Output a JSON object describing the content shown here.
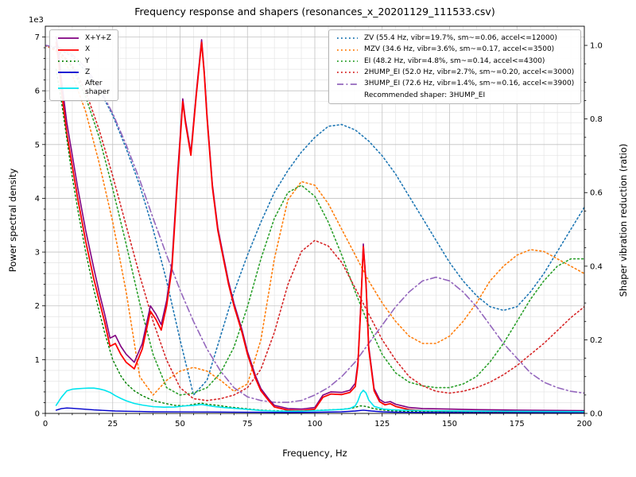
{
  "title": "Frequency response and shapers (resonances_x_20201129_111533.csv)",
  "axes": {
    "x": {
      "label": "Frequency, Hz"
    },
    "y_left": {
      "label": "Power spectral density",
      "multiplier": "1e3"
    },
    "y_right": {
      "label": "Shaper vibration reduction (ratio)"
    }
  },
  "legend_psd": {
    "items": [
      {
        "label": "X+Y+Z",
        "color": "#800080",
        "style": "solid"
      },
      {
        "label": "X",
        "color": "#ff0000",
        "style": "solid"
      },
      {
        "label": "Y",
        "color": "#008000",
        "style": "dotted"
      },
      {
        "label": "Z",
        "color": "#0000cd",
        "style": "solid"
      },
      {
        "label": "After\nshaper",
        "color": "#00e5ee",
        "style": "solid"
      }
    ]
  },
  "legend_shapers": {
    "items": [
      {
        "label": "ZV (55.4 Hz, vibr=19.7%, sm~=0.06, accel<=12000)",
        "color": "#1f77b4",
        "style": "dotted"
      },
      {
        "label": "MZV (34.6 Hz, vibr=3.6%, sm~=0.17, accel<=3500)",
        "color": "#ff7f0e",
        "style": "dotted"
      },
      {
        "label": "EI (48.2 Hz, vibr=4.8%, sm~=0.14, accel<=4300)",
        "color": "#2ca02c",
        "style": "dotted"
      },
      {
        "label": "2HUMP_EI (52.0 Hz, vibr=2.7%, sm~=0.20, accel<=3000)",
        "color": "#d62728",
        "style": "dotted"
      },
      {
        "label": "3HUMP_EI (72.6 Hz, vibr=1.4%, sm~=0.16, accel<=3900)",
        "color": "#9467bd",
        "style": "dashdot"
      }
    ],
    "note": "Recommended shaper: 3HUMP_EI"
  },
  "chart_data": {
    "type": "line",
    "title": "Frequency response and shapers (resonances_x_20201129_111533.csv)",
    "xlabel": "Frequency, Hz",
    "ylabel_left": "Power spectral density",
    "ylabel_left_multiplier": "1e3",
    "ylabel_right": "Shaper vibration reduction (ratio)",
    "x_range": [
      0,
      200
    ],
    "y_left_range": [
      0,
      7200
    ],
    "y_right_range": [
      0,
      1.052
    ],
    "grid": {
      "major": true,
      "minor": true
    },
    "x_ticks": [
      {
        "v": 0,
        "label": "0"
      },
      {
        "v": 25,
        "label": "25"
      },
      {
        "v": 50,
        "label": "50"
      },
      {
        "v": 75,
        "label": "75"
      },
      {
        "v": 100,
        "label": "100"
      },
      {
        "v": 125,
        "label": "125"
      },
      {
        "v": 150,
        "label": "150"
      },
      {
        "v": 175,
        "label": "175"
      },
      {
        "v": 200,
        "label": "200"
      }
    ],
    "y_left_ticks": [
      {
        "v": 0,
        "label": "0"
      },
      {
        "v": 1000,
        "label": "1"
      },
      {
        "v": 2000,
        "label": "2"
      },
      {
        "v": 3000,
        "label": "3"
      },
      {
        "v": 4000,
        "label": "4"
      },
      {
        "v": 5000,
        "label": "5"
      },
      {
        "v": 6000,
        "label": "6"
      },
      {
        "v": 7000,
        "label": "7"
      }
    ],
    "y_right_ticks": [
      {
        "v": 0.0,
        "label": "0.0"
      },
      {
        "v": 0.2,
        "label": "0.2"
      },
      {
        "v": 0.4,
        "label": "0.4"
      },
      {
        "v": 0.6,
        "label": "0.6"
      },
      {
        "v": 0.8,
        "label": "0.8"
      },
      {
        "v": 1.0,
        "label": "1.0"
      }
    ],
    "minor": {
      "x_step": 5,
      "y_left_step": 200,
      "y_right_step": 0.05
    },
    "psd_series": [
      {
        "name": "X+Y+Z",
        "color": "#800080",
        "style": "solid",
        "width": 1.6,
        "x": [
          4,
          5,
          6,
          8,
          10,
          12,
          15,
          18,
          20,
          22,
          24,
          26,
          28,
          30,
          33,
          36,
          39,
          41,
          43,
          45,
          47,
          49,
          51,
          52,
          54,
          56,
          58,
          59,
          60,
          62,
          64,
          66,
          68,
          70,
          73,
          75,
          78,
          80,
          83,
          85,
          90,
          95,
          100,
          103,
          106,
          110,
          113,
          115,
          116,
          117,
          118,
          119,
          120,
          122,
          124,
          126,
          128,
          130,
          135,
          140,
          150,
          160,
          175,
          200
        ],
        "y": [
          7000,
          6700,
          6200,
          5400,
          4800,
          4200,
          3400,
          2700,
          2250,
          1850,
          1400,
          1450,
          1250,
          1100,
          950,
          1300,
          2000,
          1850,
          1650,
          2100,
          2800,
          4400,
          5850,
          5450,
          4850,
          5950,
          6950,
          6350,
          5550,
          4250,
          3450,
          2950,
          2450,
          2050,
          1550,
          1150,
          700,
          460,
          260,
          150,
          90,
          80,
          110,
          340,
          400,
          390,
          430,
          560,
          950,
          1950,
          3150,
          2450,
          1250,
          460,
          260,
          200,
          220,
          170,
          110,
          90,
          80,
          70,
          60,
          50
        ]
      },
      {
        "name": "X",
        "color": "#ff0000",
        "style": "solid",
        "width": 1.8,
        "x": [
          4,
          5,
          6,
          8,
          10,
          12,
          15,
          18,
          20,
          22,
          24,
          26,
          28,
          30,
          33,
          36,
          39,
          41,
          43,
          45,
          47,
          49,
          51,
          52,
          54,
          56,
          58,
          59,
          60,
          62,
          64,
          66,
          68,
          70,
          73,
          75,
          78,
          80,
          83,
          85,
          90,
          95,
          100,
          103,
          106,
          110,
          113,
          115,
          116,
          117,
          118,
          119,
          120,
          122,
          124,
          126,
          128,
          130,
          135,
          140,
          150,
          160,
          175,
          200
        ],
        "y": [
          6900,
          6500,
          6000,
          5200,
          4600,
          4000,
          3200,
          2500,
          2100,
          1700,
          1250,
          1300,
          1100,
          950,
          830,
          1200,
          1900,
          1750,
          1550,
          2000,
          2700,
          4300,
          5800,
          5400,
          4800,
          5900,
          6900,
          6300,
          5500,
          4200,
          3400,
          2900,
          2400,
          2000,
          1500,
          1100,
          650,
          420,
          230,
          120,
          60,
          50,
          80,
          300,
          360,
          350,
          390,
          500,
          900,
          1900,
          3100,
          2400,
          1200,
          420,
          220,
          160,
          180,
          130,
          70,
          50,
          40,
          30,
          25,
          20
        ]
      },
      {
        "name": "Y",
        "color": "#008000",
        "style": "dotted",
        "width": 1.4,
        "x": [
          4,
          6,
          8,
          10,
          12,
          15,
          18,
          20,
          22,
          25,
          28,
          30,
          33,
          36,
          40,
          44,
          48,
          52,
          55,
          58,
          60,
          64,
          68,
          72,
          76,
          80,
          85,
          90,
          95,
          100,
          105,
          110,
          114,
          117,
          119,
          121,
          124,
          128,
          132,
          140,
          150,
          160,
          175,
          200
        ],
        "y": [
          6400,
          5800,
          5100,
          4400,
          3800,
          3000,
          2300,
          1900,
          1500,
          1000,
          700,
          560,
          420,
          330,
          240,
          190,
          150,
          140,
          170,
          190,
          170,
          150,
          120,
          100,
          80,
          60,
          50,
          45,
          45,
          55,
          65,
          75,
          100,
          140,
          130,
          100,
          70,
          50,
          40,
          35,
          30,
          30,
          28,
          25
        ]
      },
      {
        "name": "Z",
        "color": "#0000cd",
        "style": "solid",
        "width": 1.4,
        "x": [
          4,
          6,
          8,
          10,
          14,
          18,
          22,
          26,
          30,
          35,
          40,
          50,
          60,
          70,
          80,
          90,
          100,
          110,
          115,
          118,
          121,
          125,
          130,
          140,
          150,
          175,
          200
        ],
        "y": [
          60,
          90,
          100,
          95,
          80,
          65,
          55,
          45,
          40,
          35,
          30,
          28,
          26,
          24,
          20,
          18,
          20,
          30,
          45,
          60,
          45,
          30,
          22,
          18,
          15,
          12,
          10
        ]
      },
      {
        "name": "After shaper",
        "color": "#00e5ee",
        "style": "solid",
        "width": 1.6,
        "x": [
          4,
          6,
          8,
          10,
          12,
          14,
          16,
          18,
          20,
          22,
          24,
          26,
          28,
          30,
          33,
          36,
          40,
          44,
          48,
          52,
          55,
          57,
          58,
          60,
          63,
          66,
          70,
          75,
          80,
          85,
          90,
          95,
          100,
          105,
          110,
          113,
          115,
          116,
          117,
          118,
          119,
          120,
          122,
          125,
          128,
          132,
          140,
          150,
          160,
          175,
          200
        ],
        "y": [
          150,
          300,
          420,
          450,
          460,
          465,
          470,
          470,
          455,
          430,
          390,
          330,
          280,
          235,
          185,
          155,
          125,
          115,
          120,
          140,
          150,
          160,
          165,
          150,
          125,
          110,
          95,
          75,
          55,
          45,
          42,
          42,
          50,
          62,
          75,
          90,
          140,
          230,
          370,
          430,
          380,
          250,
          130,
          85,
          70,
          60,
          52,
          46,
          42,
          38,
          32
        ]
      }
    ],
    "shaper_x": [
      0,
      5,
      10,
      15,
      20,
      25,
      30,
      35,
      40,
      45,
      50,
      55,
      60,
      65,
      70,
      75,
      80,
      85,
      90,
      95,
      100,
      105,
      110,
      115,
      120,
      125,
      130,
      135,
      140,
      145,
      150,
      155,
      160,
      165,
      170,
      175,
      180,
      185,
      190,
      195,
      200
    ],
    "shaper_series": [
      {
        "name": "ZV",
        "color": "#1f77b4",
        "style": "dotted",
        "width": 1.6,
        "values": [
          1.0,
          0.99,
          0.97,
          0.93,
          0.88,
          0.81,
          0.72,
          0.62,
          0.5,
          0.36,
          0.2,
          0.05,
          0.09,
          0.21,
          0.33,
          0.43,
          0.52,
          0.6,
          0.66,
          0.71,
          0.75,
          0.78,
          0.785,
          0.77,
          0.74,
          0.7,
          0.65,
          0.59,
          0.53,
          0.47,
          0.41,
          0.36,
          0.32,
          0.29,
          0.28,
          0.29,
          0.33,
          0.38,
          0.44,
          0.5,
          0.56
        ]
      },
      {
        "name": "MZV",
        "color": "#ff7f0e",
        "style": "dotted",
        "width": 1.6,
        "values": [
          1.0,
          0.98,
          0.92,
          0.82,
          0.68,
          0.52,
          0.33,
          0.1,
          0.05,
          0.09,
          0.115,
          0.125,
          0.115,
          0.09,
          0.06,
          0.08,
          0.2,
          0.42,
          0.58,
          0.63,
          0.62,
          0.57,
          0.5,
          0.43,
          0.36,
          0.3,
          0.25,
          0.21,
          0.19,
          0.19,
          0.21,
          0.25,
          0.3,
          0.36,
          0.4,
          0.43,
          0.445,
          0.44,
          0.42,
          0.4,
          0.38
        ]
      },
      {
        "name": "EI",
        "color": "#2ca02c",
        "style": "dotted",
        "width": 1.6,
        "values": [
          1.0,
          0.985,
          0.94,
          0.86,
          0.75,
          0.61,
          0.46,
          0.3,
          0.16,
          0.07,
          0.05,
          0.055,
          0.07,
          0.11,
          0.18,
          0.29,
          0.42,
          0.53,
          0.6,
          0.62,
          0.59,
          0.52,
          0.43,
          0.33,
          0.24,
          0.16,
          0.11,
          0.085,
          0.075,
          0.07,
          0.07,
          0.08,
          0.1,
          0.14,
          0.19,
          0.25,
          0.31,
          0.36,
          0.4,
          0.42,
          0.42
        ]
      },
      {
        "name": "2HUMP_EI",
        "color": "#d62728",
        "style": "dotted",
        "width": 1.6,
        "values": [
          1.0,
          0.985,
          0.945,
          0.875,
          0.77,
          0.645,
          0.51,
          0.375,
          0.25,
          0.145,
          0.07,
          0.04,
          0.035,
          0.04,
          0.05,
          0.07,
          0.12,
          0.22,
          0.35,
          0.44,
          0.47,
          0.455,
          0.41,
          0.34,
          0.27,
          0.2,
          0.145,
          0.1,
          0.075,
          0.06,
          0.055,
          0.06,
          0.07,
          0.085,
          0.105,
          0.13,
          0.16,
          0.19,
          0.225,
          0.26,
          0.29
        ]
      },
      {
        "name": "3HUMP_EI",
        "color": "#9467bd",
        "style": "dashdot",
        "width": 1.6,
        "values": [
          1.0,
          0.995,
          0.975,
          0.94,
          0.885,
          0.815,
          0.73,
          0.635,
          0.53,
          0.43,
          0.335,
          0.25,
          0.175,
          0.115,
          0.07,
          0.045,
          0.035,
          0.03,
          0.03,
          0.035,
          0.05,
          0.07,
          0.1,
          0.14,
          0.19,
          0.24,
          0.29,
          0.33,
          0.36,
          0.37,
          0.36,
          0.33,
          0.29,
          0.24,
          0.19,
          0.15,
          0.11,
          0.085,
          0.07,
          0.06,
          0.055
        ]
      }
    ],
    "recommended_shaper": "3HUMP_EI",
    "legend_position": {
      "psd": "upper left",
      "shapers": "upper right"
    }
  }
}
